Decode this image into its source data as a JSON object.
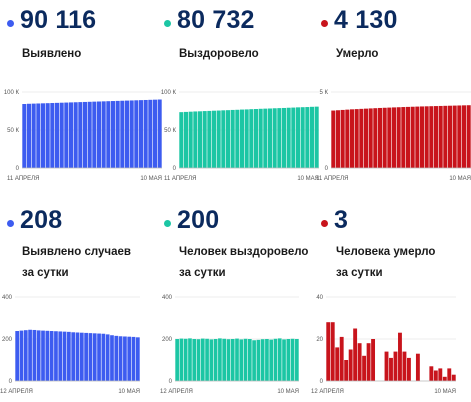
{
  "panels": [
    {
      "value": "90 116",
      "label1": "Выявлено",
      "label2": "",
      "color": "#3d5cf0"
    },
    {
      "value": "80 732",
      "label1": "Выздоровело",
      "label2": "",
      "color": "#1cc6a4"
    },
    {
      "value": "4 130",
      "label1": "Умерло",
      "label2": "",
      "color": "#c8141c"
    },
    {
      "value": "208",
      "label1": "Выявлено случаев",
      "label2": "за сутки",
      "color": "#3d5cf0"
    },
    {
      "value": "200",
      "label1": "Человек выздоровело",
      "label2": "за сутки",
      "color": "#1cc6a4"
    },
    {
      "value": "3",
      "label1": "Человека умерло",
      "label2": "за сутки",
      "color": "#c8141c"
    }
  ],
  "chart_data": [
    {
      "type": "bar",
      "color": "#3d5cf0",
      "ylim": [
        0,
        100000
      ],
      "yticks": [
        {
          "value": 0,
          "label": "0"
        },
        {
          "value": 50000,
          "label": "50 К"
        },
        {
          "value": 100000,
          "label": "100 К"
        }
      ],
      "x_start": "11 АПРЕЛЯ",
      "x_end": "10 МАЯ",
      "values": [
        84200,
        84500,
        84700,
        84900,
        85100,
        85300,
        85500,
        85700,
        85900,
        86100,
        86300,
        86500,
        86700,
        86900,
        87100,
        87300,
        87500,
        87700,
        87900,
        88100,
        88300,
        88500,
        88700,
        88900,
        89100,
        89300,
        89500,
        89700,
        89900,
        90116
      ]
    },
    {
      "type": "bar",
      "color": "#1cc6a4",
      "ylim": [
        0,
        100000
      ],
      "yticks": [
        {
          "value": 0,
          "label": "0"
        },
        {
          "value": 50000,
          "label": "50 К"
        },
        {
          "value": 100000,
          "label": "100 К"
        }
      ],
      "x_start": "11 АПРЕЛЯ",
      "x_end": "10 МАЯ",
      "values": [
        73500,
        73800,
        74100,
        74400,
        74600,
        74900,
        75100,
        75400,
        75600,
        75900,
        76100,
        76400,
        76600,
        76900,
        77100,
        77400,
        77600,
        77900,
        78100,
        78300,
        78600,
        78800,
        79000,
        79300,
        79500,
        79800,
        80000,
        80200,
        80500,
        80732
      ]
    },
    {
      "type": "bar",
      "color": "#c8141c",
      "ylim": [
        0,
        5000
      ],
      "yticks": [
        {
          "value": 0,
          "label": "0"
        },
        {
          "value": 5000,
          "label": "5 К"
        }
      ],
      "x_start": "11 АПРЕЛЯ",
      "x_end": "10 МАЯ",
      "values": [
        3780,
        3800,
        3820,
        3840,
        3860,
        3875,
        3890,
        3905,
        3920,
        3935,
        3950,
        3962,
        3974,
        3986,
        3998,
        4010,
        4020,
        4030,
        4040,
        4050,
        4058,
        4066,
        4074,
        4082,
        4090,
        4098,
        4106,
        4114,
        4122,
        4130
      ]
    },
    {
      "type": "bar",
      "color": "#3d5cf0",
      "ylim": [
        0,
        400
      ],
      "yticks": [
        {
          "value": 0,
          "label": "0"
        },
        {
          "value": 200,
          "label": "200"
        },
        {
          "value": 400,
          "label": "400"
        }
      ],
      "x_start": "12 АПРЕЛЯ",
      "x_end": "10 МАЯ",
      "values": [
        238,
        240,
        242,
        244,
        243,
        241,
        240,
        239,
        238,
        237,
        236,
        235,
        234,
        232,
        231,
        230,
        229,
        228,
        227,
        226,
        225,
        222,
        218,
        215,
        213,
        212,
        211,
        210,
        208
      ]
    },
    {
      "type": "bar",
      "color": "#1cc6a4",
      "ylim": [
        0,
        400
      ],
      "yticks": [
        {
          "value": 0,
          "label": "0"
        },
        {
          "value": 200,
          "label": "200"
        },
        {
          "value": 400,
          "label": "400"
        }
      ],
      "x_start": "12 АПРЕЛЯ",
      "x_end": "10 МАЯ",
      "values": [
        200,
        202,
        201,
        203,
        200,
        199,
        202,
        201,
        198,
        200,
        203,
        201,
        199,
        200,
        202,
        198,
        201,
        200,
        194,
        196,
        199,
        200,
        197,
        201,
        203,
        198,
        200,
        201,
        200
      ]
    },
    {
      "type": "bar",
      "color": "#c8141c",
      "ylim": [
        0,
        40
      ],
      "yticks": [
        {
          "value": 0,
          "label": "0"
        },
        {
          "value": 20,
          "label": "20"
        },
        {
          "value": 40,
          "label": "40"
        }
      ],
      "x_start": "12 АПРЕЛЯ",
      "x_end": "10 МАЯ",
      "values": [
        28,
        28,
        16,
        21,
        10,
        15,
        25,
        18,
        12,
        18,
        20,
        0,
        0,
        14,
        11,
        14,
        23,
        14,
        11,
        0,
        13,
        0,
        0,
        7,
        5,
        6,
        2,
        6,
        3
      ]
    }
  ]
}
